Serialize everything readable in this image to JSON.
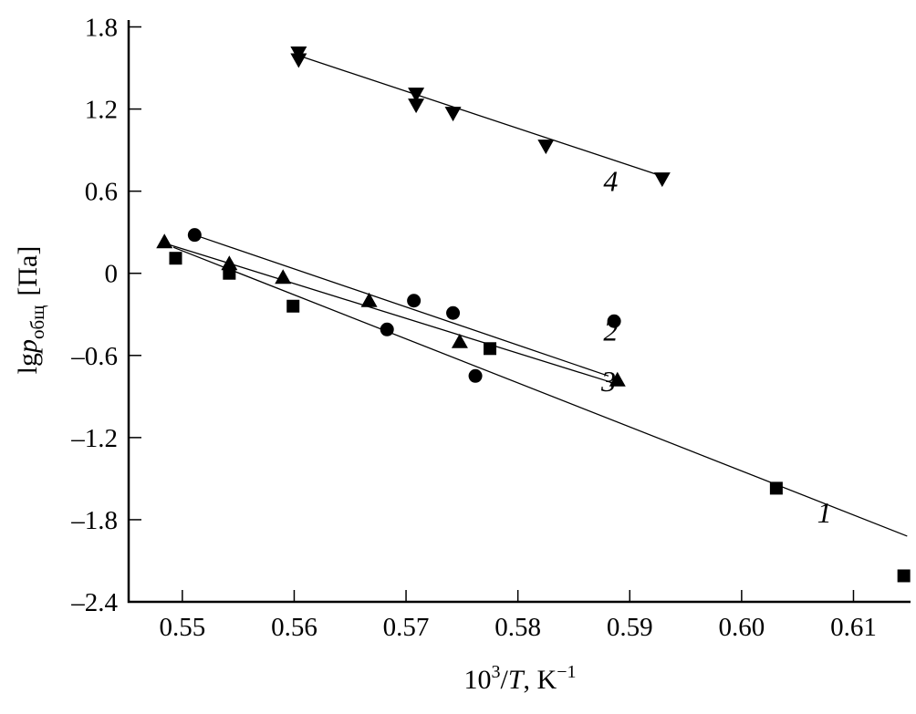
{
  "chart_data": {
    "type": "scatter",
    "title": "",
    "xlabel": {
      "base": "10",
      "sup": "3",
      "mid": "/",
      "var": "T",
      "rest": ", K",
      "unit_sup": "−1"
    },
    "ylabel": {
      "prefix": "lg",
      "var": "p",
      "sub": "общ",
      "unit": "[Па]"
    },
    "xlim": [
      0.5452,
      0.6151
    ],
    "ylim": [
      -2.4,
      1.85
    ],
    "xticks": [
      0.55,
      0.56,
      0.57,
      0.58,
      0.59,
      0.6,
      0.61
    ],
    "xtick_labels": [
      "0.55",
      "0.56",
      "0.57",
      "0.58",
      "0.59",
      "0.60",
      "0.61"
    ],
    "yticks": [
      1.8,
      1.2,
      0.6,
      0,
      -0.6,
      -1.2,
      -1.8,
      -2.4
    ],
    "ytick_labels": [
      "1.8",
      "1.2",
      "0.6",
      "0",
      "–0.6",
      "–1.2",
      "–1.8",
      "–2.4"
    ],
    "grid": false,
    "colors": {
      "ink": "#000000",
      "background": "#ffffff"
    },
    "series": [
      {
        "label": "1",
        "marker": "square",
        "x": [
          0.5494,
          0.5542,
          0.5599,
          0.5775,
          0.6031,
          0.6145
        ],
        "y": [
          0.11,
          0.0,
          -0.24,
          -0.55,
          -1.57,
          -2.21
        ],
        "fit": {
          "x": [
            0.5492,
            0.6148
          ],
          "y": [
            0.19,
            -1.92
          ]
        },
        "label_pos": {
          "x": 0.6074,
          "y": -1.82
        }
      },
      {
        "label": "2",
        "marker": "circle",
        "x": [
          0.5511,
          0.5683,
          0.5707,
          0.5742,
          0.5762,
          0.5886
        ],
        "y": [
          0.28,
          -0.41,
          -0.2,
          -0.29,
          -0.75,
          -0.35
        ],
        "fit": {
          "x": [
            0.5511,
            0.5881
          ],
          "y": [
            0.28,
            -0.75
          ]
        },
        "label_pos": {
          "x": 0.5883,
          "y": -0.49
        }
      },
      {
        "label": "3",
        "marker": "triangle-up",
        "x": [
          0.5484,
          0.5542,
          0.559,
          0.5667,
          0.5748,
          0.5889
        ],
        "y": [
          0.23,
          0.07,
          -0.03,
          -0.2,
          -0.5,
          -0.78
        ],
        "fit": {
          "x": [
            0.5488,
            0.5885
          ],
          "y": [
            0.21,
            -0.8
          ]
        },
        "label_pos": {
          "x": 0.5881,
          "y": -0.86
        }
      },
      {
        "label": "4",
        "marker": "triangle-down",
        "x": [
          0.5604,
          0.5604,
          0.5709,
          0.5709,
          0.5742,
          0.5825,
          0.5929
        ],
        "y": [
          1.61,
          1.56,
          1.31,
          1.23,
          1.17,
          0.93,
          0.69
        ],
        "fit": {
          "x": [
            0.5604,
            0.5925
          ],
          "y": [
            1.59,
            0.72
          ]
        },
        "label_pos": {
          "x": 0.5883,
          "y": 0.6
        }
      }
    ]
  }
}
